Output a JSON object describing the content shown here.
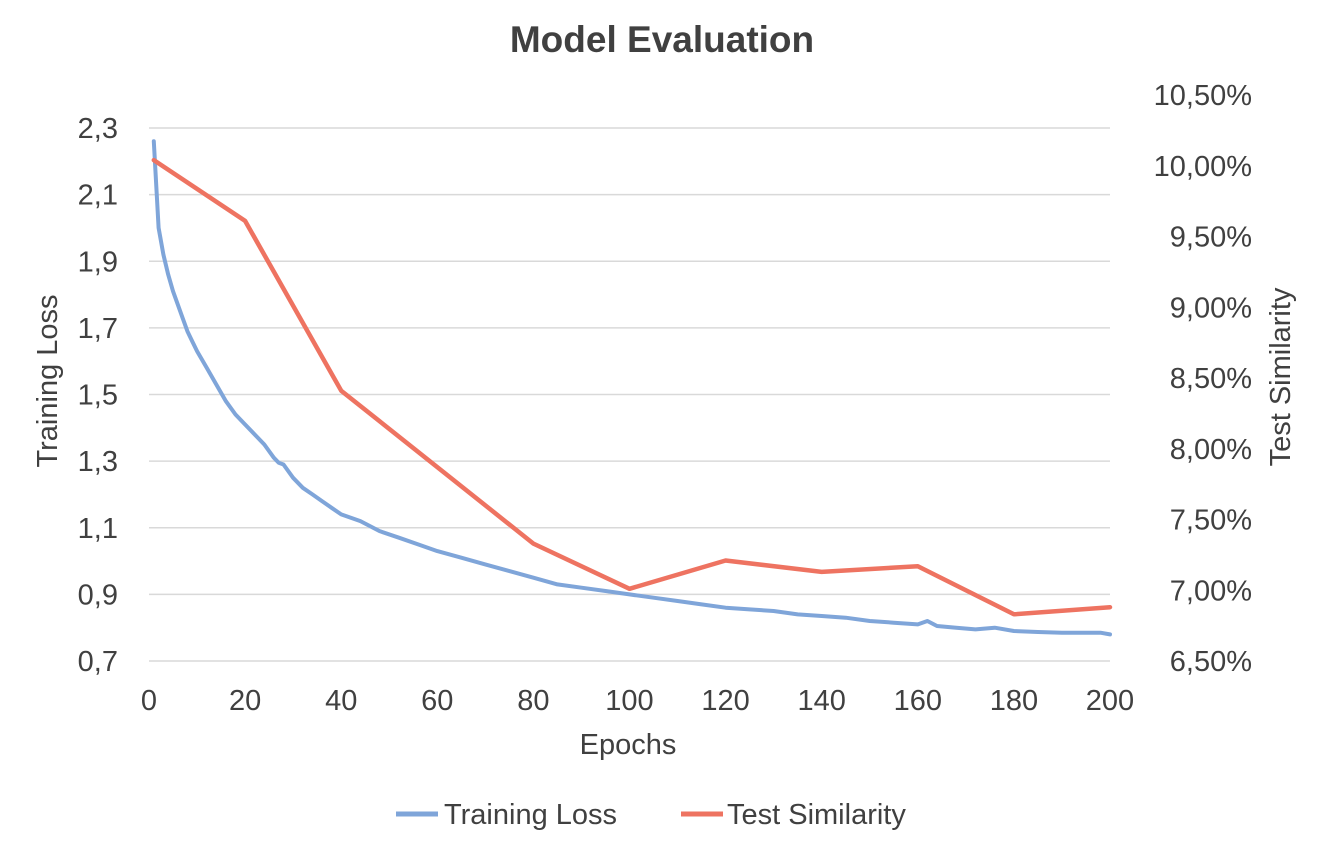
{
  "chart_data": {
    "type": "line",
    "title": "Model Evaluation",
    "xlabel": "Epochs",
    "ylabel": "Training Loss",
    "y2label": "Test Similarity",
    "xlim": [
      0,
      200
    ],
    "xticks": [
      0,
      20,
      40,
      60,
      80,
      100,
      120,
      140,
      160,
      180,
      200
    ],
    "xtick_labels": [
      "0",
      "20",
      "40",
      "60",
      "80",
      "100",
      "120",
      "140",
      "160",
      "180",
      "200"
    ],
    "ylim": [
      0.7,
      2.3
    ],
    "yticks": [
      0.7,
      0.9,
      1.1,
      1.3,
      1.5,
      1.7,
      1.9,
      2.1,
      2.3
    ],
    "ytick_labels": [
      "0,7",
      "0,9",
      "1,1",
      "1,3",
      "1,5",
      "1,7",
      "1,9",
      "2,1",
      "2,3"
    ],
    "y2lim": [
      6.5,
      10.5
    ],
    "y2ticks": [
      6.5,
      7.0,
      7.5,
      8.0,
      8.5,
      9.0,
      9.5,
      10.0,
      10.5
    ],
    "y2tick_labels": [
      "6,50%",
      "7,00%",
      "7,50%",
      "8,00%",
      "8,50%",
      "9,00%",
      "9,50%",
      "10,00%",
      "10,50%"
    ],
    "grid": true,
    "legend_position": "bottom",
    "series": [
      {
        "name": "Training Loss",
        "axis": "left",
        "color": "#7fa5d9",
        "x": [
          1,
          2,
          3,
          4,
          5,
          6,
          7,
          8,
          9,
          10,
          12,
          14,
          16,
          18,
          20,
          22,
          24,
          26,
          27,
          28,
          30,
          32,
          34,
          36,
          38,
          40,
          44,
          48,
          52,
          56,
          60,
          65,
          70,
          75,
          80,
          85,
          90,
          95,
          100,
          105,
          110,
          115,
          120,
          125,
          130,
          135,
          140,
          145,
          150,
          155,
          160,
          162,
          164,
          168,
          172,
          176,
          180,
          185,
          190,
          195,
          198,
          200
        ],
        "values": [
          2.26,
          2.0,
          1.92,
          1.86,
          1.81,
          1.77,
          1.73,
          1.69,
          1.66,
          1.63,
          1.58,
          1.53,
          1.48,
          1.44,
          1.41,
          1.38,
          1.35,
          1.31,
          1.295,
          1.29,
          1.25,
          1.22,
          1.2,
          1.18,
          1.16,
          1.14,
          1.12,
          1.09,
          1.07,
          1.05,
          1.03,
          1.01,
          0.99,
          0.97,
          0.95,
          0.93,
          0.92,
          0.91,
          0.9,
          0.89,
          0.88,
          0.87,
          0.86,
          0.855,
          0.85,
          0.84,
          0.835,
          0.83,
          0.82,
          0.815,
          0.81,
          0.82,
          0.805,
          0.8,
          0.795,
          0.8,
          0.79,
          0.787,
          0.785,
          0.785,
          0.785,
          0.78
        ]
      },
      {
        "name": "Test Similarity",
        "axis": "right",
        "unit": "%",
        "color": "#ee7361",
        "x": [
          1,
          20,
          40,
          80,
          100,
          120,
          140,
          160,
          180,
          200
        ],
        "values": [
          10.04,
          9.61,
          8.41,
          7.33,
          7.01,
          7.21,
          7.13,
          7.17,
          6.83,
          6.88
        ]
      }
    ]
  }
}
